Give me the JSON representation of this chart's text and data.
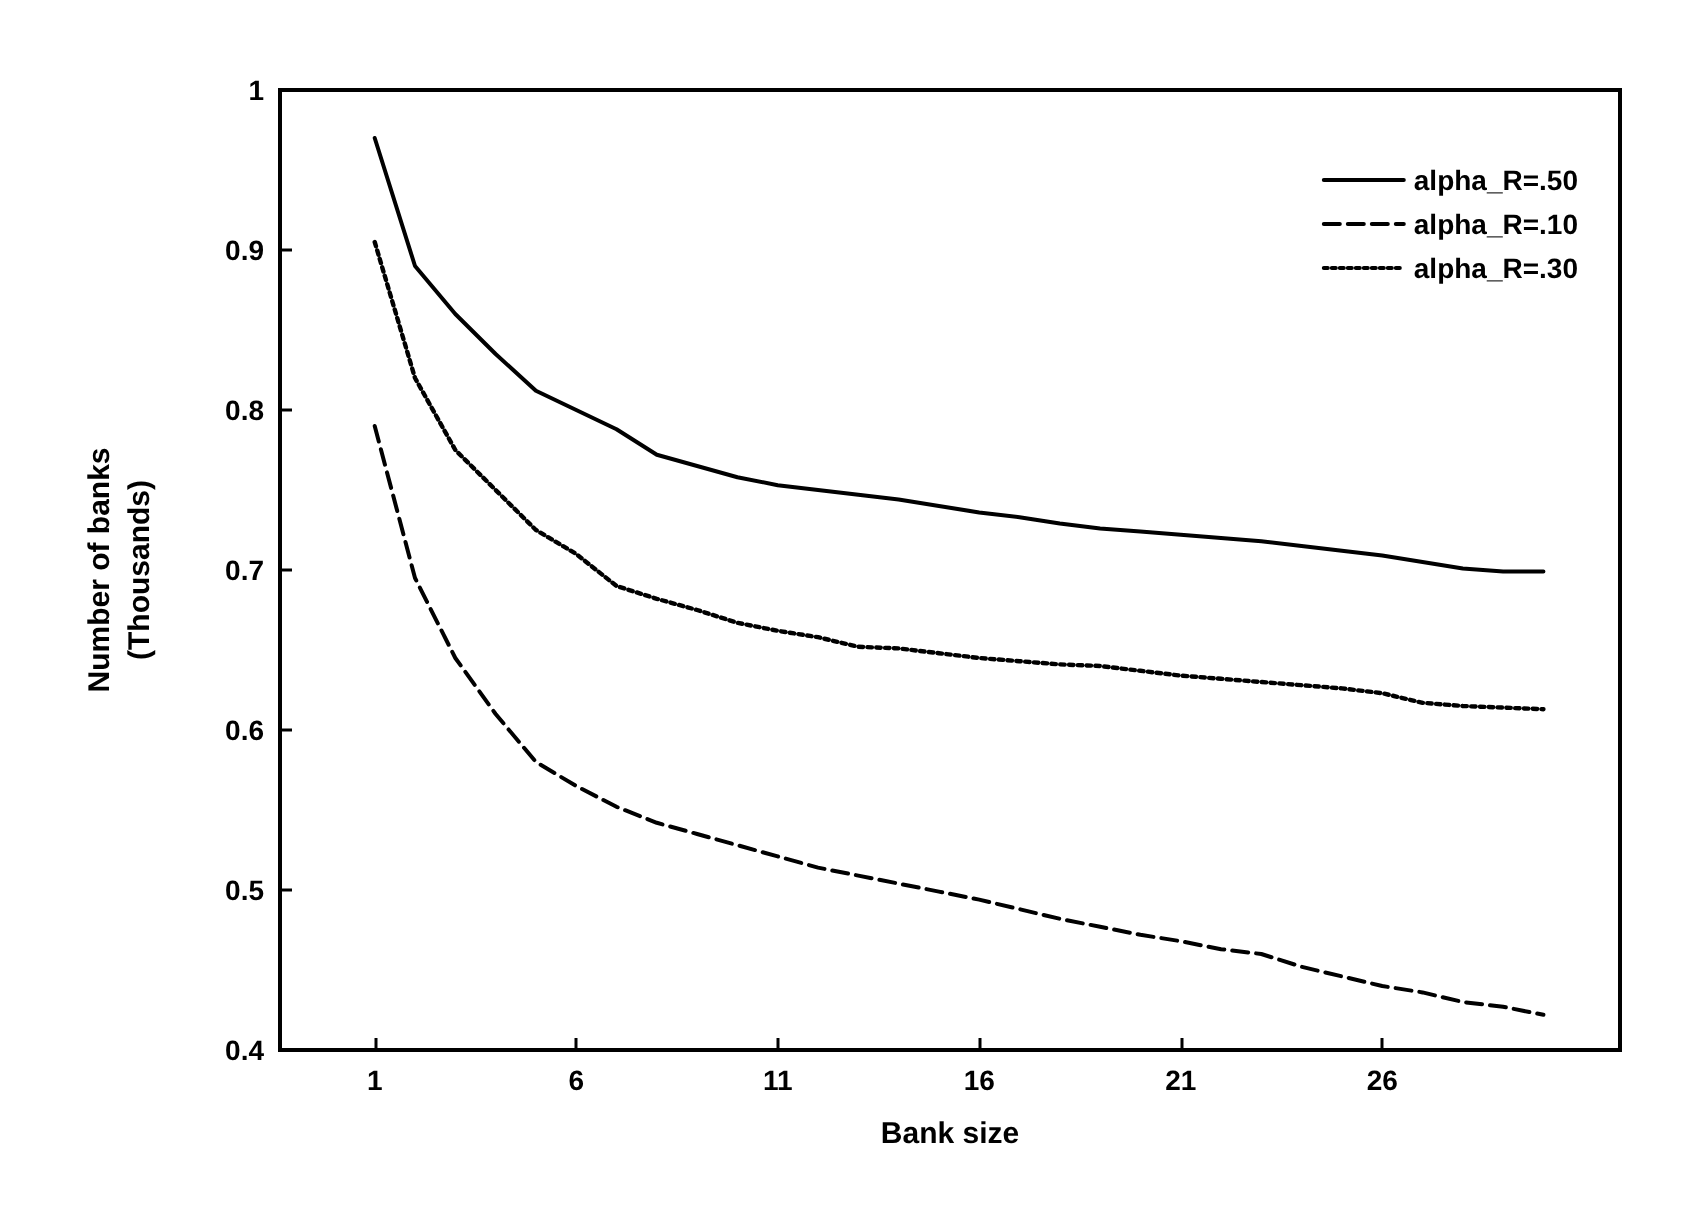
{
  "chart_data": {
    "type": "line",
    "xlabel": "Bank size",
    "ylabel": "Number of banks\n(Thousands)",
    "x": [
      1,
      2,
      3,
      4,
      5,
      6,
      7,
      8,
      9,
      10,
      11,
      12,
      13,
      14,
      15,
      16,
      17,
      18,
      19,
      20,
      21,
      22,
      23,
      24,
      25,
      26,
      27,
      28,
      29,
      30
    ],
    "series": [
      {
        "name": "alpha_R=.50",
        "color": "#000000",
        "line_style": "solid",
        "values": [
          0.97,
          0.89,
          0.86,
          0.835,
          0.812,
          0.8,
          0.788,
          0.772,
          0.765,
          0.758,
          0.753,
          0.75,
          0.747,
          0.744,
          0.74,
          0.736,
          0.733,
          0.729,
          0.726,
          0.724,
          0.722,
          0.72,
          0.718,
          0.715,
          0.712,
          0.709,
          0.705,
          0.701,
          0.699,
          0.699
        ]
      },
      {
        "name": "alpha_R=.10",
        "color": "#000000",
        "line_style": "dashed",
        "values": [
          0.79,
          0.695,
          0.645,
          0.61,
          0.58,
          0.565,
          0.552,
          0.542,
          0.535,
          0.528,
          0.521,
          0.514,
          0.509,
          0.504,
          0.499,
          0.494,
          0.488,
          0.482,
          0.477,
          0.472,
          0.468,
          0.463,
          0.46,
          0.452,
          0.446,
          0.44,
          0.436,
          0.43,
          0.427,
          0.422
        ]
      },
      {
        "name": "alpha_R=.30",
        "color": "#000000",
        "line_style": "dotted",
        "values": [
          0.905,
          0.82,
          0.775,
          0.75,
          0.725,
          0.71,
          0.69,
          0.682,
          0.675,
          0.667,
          0.662,
          0.658,
          0.652,
          0.651,
          0.648,
          0.645,
          0.643,
          0.641,
          0.64,
          0.637,
          0.634,
          0.632,
          0.63,
          0.628,
          0.626,
          0.623,
          0.617,
          0.615,
          0.614,
          0.613
        ]
      }
    ],
    "xlim": [
      -1.35,
      31.9
    ],
    "xticks": [
      1,
      6,
      11,
      16,
      21,
      26
    ],
    "ylim": [
      0.4,
      1
    ],
    "yticks": [
      0.4,
      0.5,
      0.6,
      0.7,
      0.8,
      0.9,
      1
    ],
    "grid": false,
    "legend": "top right",
    "marker": "none"
  }
}
